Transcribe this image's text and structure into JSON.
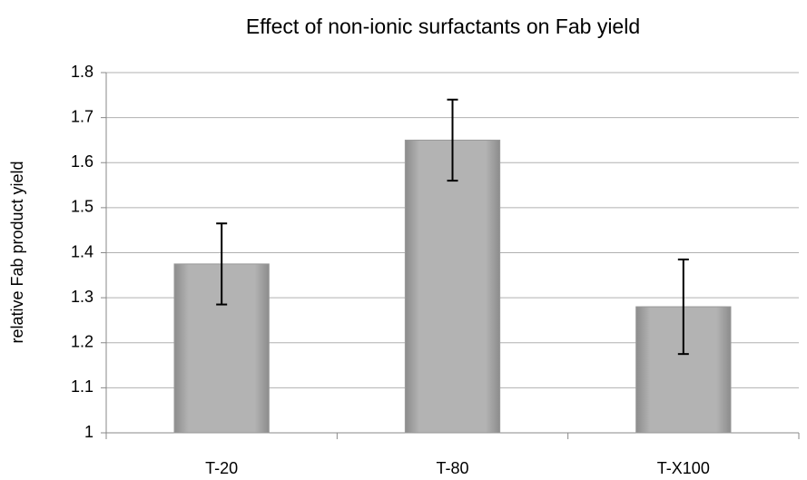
{
  "chart_data": {
    "type": "bar",
    "title": "Effect of non-ionic surfactants on Fab yield",
    "y_label": "relative Fab product yield",
    "categories": [
      "T-20",
      "T-80",
      "T-X100"
    ],
    "values": [
      1.375,
      1.65,
      1.28
    ],
    "errors": [
      0.09,
      0.09,
      0.105
    ],
    "color": "#a6a6a6",
    "ylim": [
      1,
      1.8
    ],
    "yticks": [
      1,
      1.1,
      1.2,
      1.3,
      1.4,
      1.5,
      1.6,
      1.7,
      1.8
    ],
    "grid": true
  }
}
